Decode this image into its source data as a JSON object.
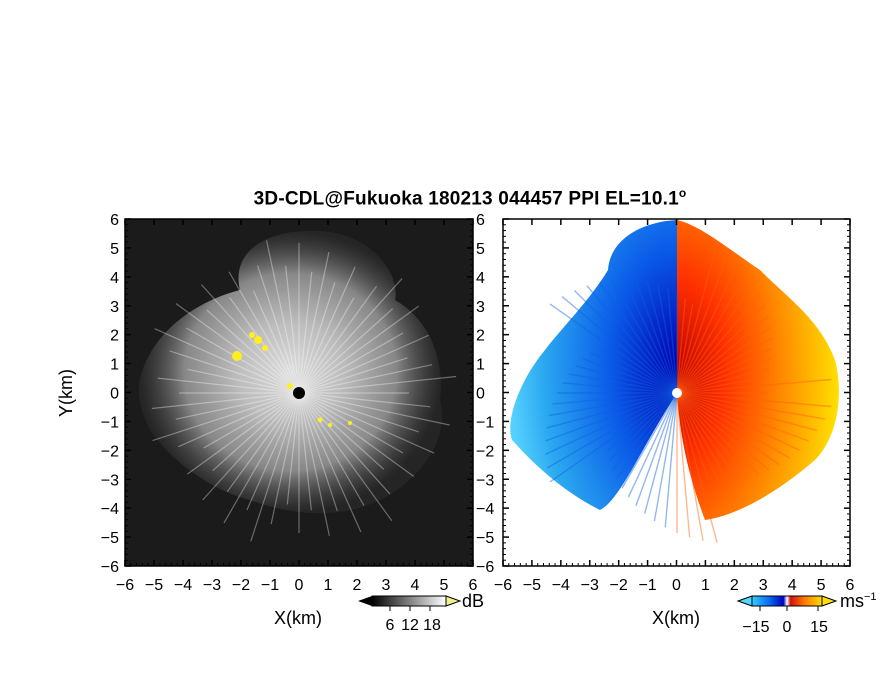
{
  "figure": {
    "title": "3D-CDL@Fukuoka 180213 044457 PPI EL=10.1",
    "title_degree": "o"
  },
  "panels": [
    {
      "name": "reflectivity-panel",
      "colormap": "grayscale",
      "xlabel": "X(km)",
      "ylabel": "Y(km)",
      "xlim": [
        -6,
        6
      ],
      "ylim": [
        -6,
        6
      ],
      "ticks": [
        -6,
        -5,
        -4,
        -3,
        -2,
        -1,
        0,
        1,
        2,
        3,
        4,
        5,
        6
      ]
    },
    {
      "name": "doppler-velocity-panel",
      "colormap": "blue-cyan / red-yellow diverging",
      "xlabel": "X(km)",
      "ylabel": "",
      "xlim": [
        -6,
        6
      ],
      "ylim": [
        -6,
        6
      ],
      "ticks": [
        -6,
        -5,
        -4,
        -3,
        -2,
        -1,
        0,
        1,
        2,
        3,
        4,
        5,
        6
      ]
    }
  ],
  "colorbars": {
    "left": {
      "unit": "dB",
      "tick_labels": [
        "6",
        "12",
        "18"
      ]
    },
    "right": {
      "unit": "ms",
      "unit_exponent": "−1",
      "tick_labels": [
        "−15",
        "0",
        "15"
      ]
    }
  },
  "colors": {
    "background_dark": "#1a1a1a",
    "highlight_yellow": "#ffee22",
    "velocity_negative": "#1060e0",
    "velocity_positive": "#ff6010",
    "center_marker_left": "#000000",
    "center_marker_right": "#ffffff"
  }
}
